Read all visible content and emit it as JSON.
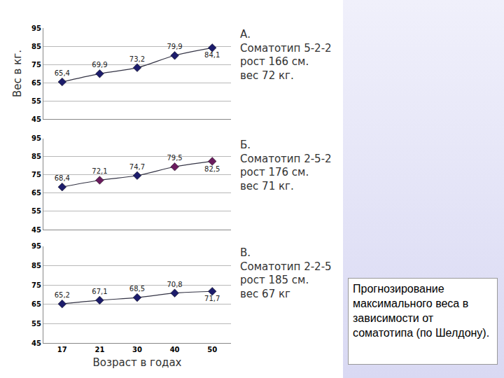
{
  "chart_data": [
    {
      "type": "line",
      "title": "А.",
      "annotations": [
        "Соматотип 5-2-2",
        "рост 166 см.",
        "вес 72 кг."
      ],
      "ylabel": "Вес в кг.",
      "categories": [
        "17",
        "21",
        "30",
        "40",
        "50"
      ],
      "values": [
        65.4,
        69.9,
        73.2,
        79.9,
        84.1
      ],
      "value_labels": [
        "65,4",
        "69,9",
        "73,2",
        "79,9",
        "84,1"
      ],
      "color": "#1c1c6b",
      "marker": "diamond",
      "line_style": "solid",
      "ylim": [
        45,
        95
      ],
      "yticks": [
        45,
        55,
        65,
        75,
        85,
        95
      ],
      "grid": true,
      "data_labels": true,
      "tick_labels": "y"
    },
    {
      "type": "line",
      "title": "Б.",
      "annotations": [
        "Соматотип 2-5-2",
        "рост 176 см.",
        "вес 71 кг."
      ],
      "categories": [
        "17",
        "21",
        "30",
        "40",
        "50"
      ],
      "values": [
        68.4,
        72.1,
        74.7,
        79.5,
        82.5
      ],
      "value_labels": [
        "68,4",
        "72,1",
        "74,7",
        "79,5",
        "82,5"
      ],
      "colors": [
        "#1c1c6b",
        "#6a1b5e",
        "#1c1c6b",
        "#6a1b5e",
        "#6a1b5e"
      ],
      "marker": "diamond",
      "line_style": "solid",
      "ylim": [
        45,
        95
      ],
      "yticks": [
        45,
        55,
        65,
        75,
        85,
        95
      ],
      "grid": true,
      "data_labels": true,
      "tick_labels": "y"
    },
    {
      "type": "line",
      "title": "В.",
      "annotations": [
        "Соматотип 2-2-5",
        "рост 185 см.",
        "вес 67 кг"
      ],
      "xlabel": "Возраст в годах",
      "categories": [
        "17",
        "21",
        "30",
        "40",
        "50"
      ],
      "values": [
        65.2,
        67.1,
        68.5,
        70.8,
        71.7
      ],
      "value_labels": [
        "65,2",
        "67,1",
        "68,5",
        "70,8",
        "71,7"
      ],
      "color": "#1c1c6b",
      "marker": "diamond",
      "line_style": "solid",
      "ylim": [
        45,
        95
      ],
      "yticks": [
        45,
        55,
        65,
        75,
        85,
        95
      ],
      "grid": true,
      "data_labels": true
    }
  ],
  "caption": "Прогнозирование максимального веса в зависимости от соматотипа (по Шелдону)."
}
